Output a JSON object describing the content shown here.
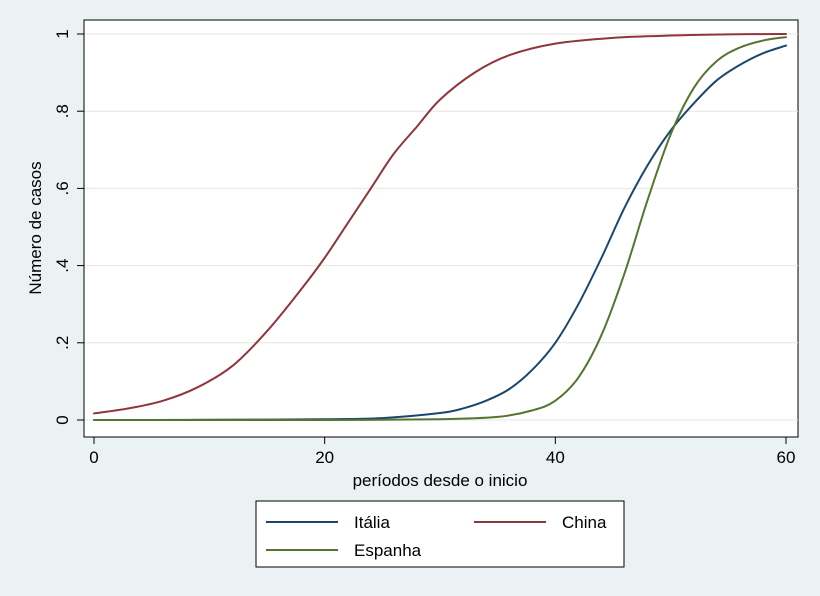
{
  "chart_data": {
    "type": "line",
    "title": "",
    "xlabel": "períodos desde o inicio",
    "ylabel": "Número de casos",
    "xlim": [
      0,
      60
    ],
    "ylim": [
      0,
      1
    ],
    "xticks": [
      0,
      20,
      40,
      60
    ],
    "xtick_labels": [
      "0",
      "20",
      "40",
      "60"
    ],
    "yticks": [
      0,
      0.2,
      0.4,
      0.6,
      0.8,
      1
    ],
    "ytick_labels": [
      "0",
      ".2",
      ".4",
      ".6",
      ".8",
      "1"
    ],
    "grid": "horizontal",
    "legend": "bottom",
    "background": "#eaf2f3",
    "plot_background": "#ffffff",
    "series": [
      {
        "name": "Itália",
        "color": "#1a476f",
        "x": [
          0,
          5,
          10,
          15,
          20,
          25,
          30,
          32,
          34,
          36,
          38,
          40,
          42,
          44,
          46,
          48,
          50,
          52,
          54,
          56,
          58,
          60
        ],
        "y": [
          0.0,
          0.0,
          0.0005,
          0.001,
          0.002,
          0.005,
          0.018,
          0.03,
          0.05,
          0.08,
          0.13,
          0.2,
          0.3,
          0.42,
          0.55,
          0.66,
          0.75,
          0.82,
          0.88,
          0.92,
          0.95,
          0.97
        ]
      },
      {
        "name": "China",
        "color": "#90353b",
        "x": [
          0,
          3,
          6,
          9,
          12,
          15,
          18,
          20,
          22,
          24,
          26,
          28,
          30,
          33,
          36,
          40,
          45,
          50,
          55,
          60
        ],
        "y": [
          0.017,
          0.03,
          0.05,
          0.085,
          0.14,
          0.23,
          0.34,
          0.42,
          0.51,
          0.6,
          0.69,
          0.76,
          0.83,
          0.9,
          0.945,
          0.975,
          0.99,
          0.996,
          0.999,
          1.0
        ]
      },
      {
        "name": "Espanha",
        "color": "#55752f",
        "x": [
          0,
          10,
          20,
          30,
          35,
          38,
          40,
          42,
          44,
          46,
          48,
          50,
          52,
          54,
          56,
          58,
          60
        ],
        "y": [
          0.0,
          0.0,
          0.0,
          0.002,
          0.008,
          0.025,
          0.05,
          0.11,
          0.22,
          0.38,
          0.57,
          0.74,
          0.86,
          0.93,
          0.965,
          0.983,
          0.992
        ]
      }
    ]
  }
}
